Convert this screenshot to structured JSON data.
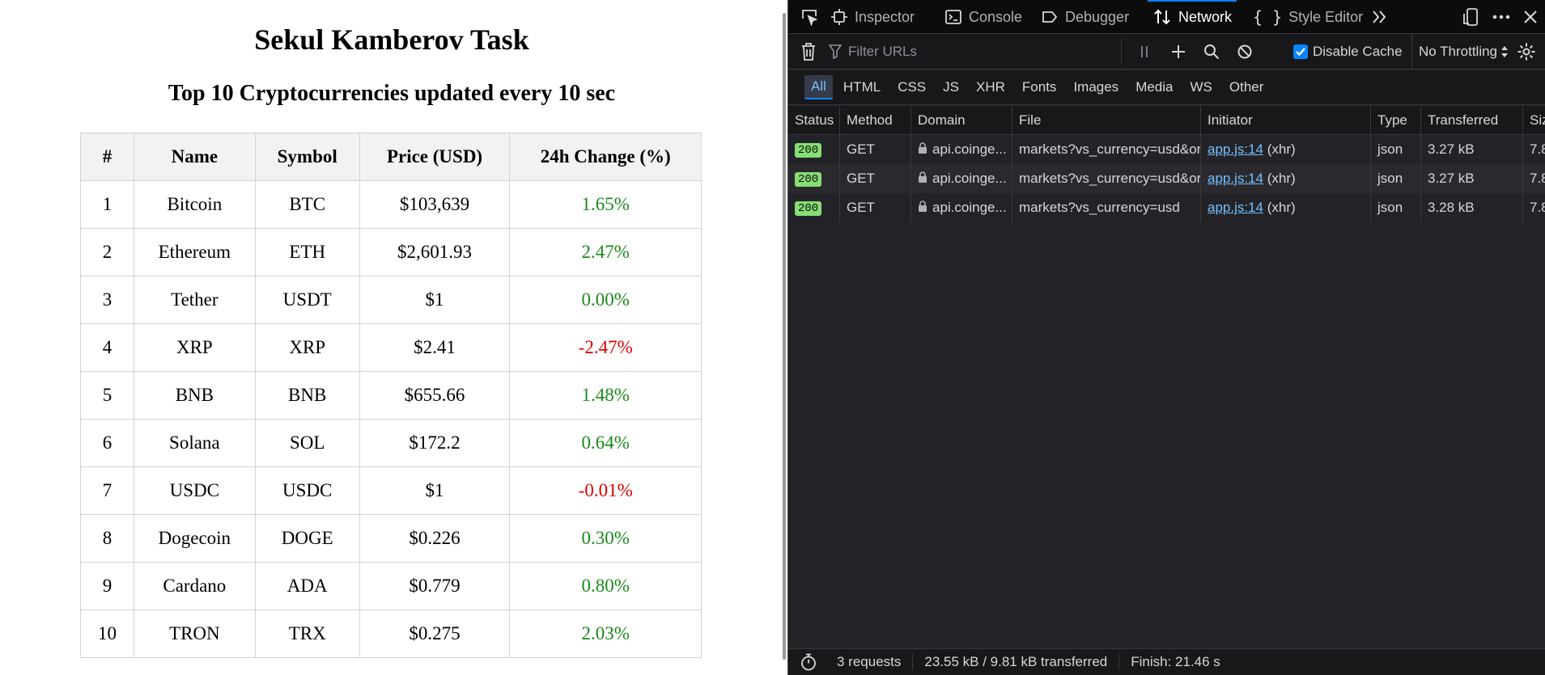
{
  "page": {
    "title": "Sekul Kamberov Task",
    "subtitle": "Top 10 Cryptocurrencies updated every 10 sec",
    "table": {
      "headers": [
        "#",
        "Name",
        "Symbol",
        "Price (USD)",
        "24h Change (%)"
      ],
      "rows": [
        {
          "rank": "1",
          "name": "Bitcoin",
          "symbol": "BTC",
          "price": "$103,639",
          "change": "1.65%",
          "trend": "pos"
        },
        {
          "rank": "2",
          "name": "Ethereum",
          "symbol": "ETH",
          "price": "$2,601.93",
          "change": "2.47%",
          "trend": "pos"
        },
        {
          "rank": "3",
          "name": "Tether",
          "symbol": "USDT",
          "price": "$1",
          "change": "0.00%",
          "trend": "pos"
        },
        {
          "rank": "4",
          "name": "XRP",
          "symbol": "XRP",
          "price": "$2.41",
          "change": "-2.47%",
          "trend": "neg"
        },
        {
          "rank": "5",
          "name": "BNB",
          "symbol": "BNB",
          "price": "$655.66",
          "change": "1.48%",
          "trend": "pos"
        },
        {
          "rank": "6",
          "name": "Solana",
          "symbol": "SOL",
          "price": "$172.2",
          "change": "0.64%",
          "trend": "pos"
        },
        {
          "rank": "7",
          "name": "USDC",
          "symbol": "USDC",
          "price": "$1",
          "change": "-0.01%",
          "trend": "neg"
        },
        {
          "rank": "8",
          "name": "Dogecoin",
          "symbol": "DOGE",
          "price": "$0.226",
          "change": "0.30%",
          "trend": "pos"
        },
        {
          "rank": "9",
          "name": "Cardano",
          "symbol": "ADA",
          "price": "$0.779",
          "change": "0.80%",
          "trend": "pos"
        },
        {
          "rank": "10",
          "name": "TRON",
          "symbol": "TRX",
          "price": "$0.275",
          "change": "2.03%",
          "trend": "pos"
        }
      ]
    },
    "colors": {
      "positive": "#1a8a1a",
      "negative": "#e00000"
    }
  },
  "devtools": {
    "tabs": {
      "inspector": "Inspector",
      "console": "Console",
      "debugger": "Debugger",
      "network": "Network",
      "style_editor": "Style Editor"
    },
    "selected_tab": "Network",
    "toolbar": {
      "filter_placeholder": "Filter URLs",
      "disable_cache_label": "Disable Cache",
      "disable_cache_checked": true,
      "throttling": "No Throttling"
    },
    "type_filters": [
      "All",
      "HTML",
      "CSS",
      "JS",
      "XHR",
      "Fonts",
      "Images",
      "Media",
      "WS",
      "Other"
    ],
    "selected_type_filter": "All",
    "columns": {
      "status": "Status",
      "method": "Method",
      "domain": "Domain",
      "file": "File",
      "initiator": "Initiator",
      "type": "Type",
      "transferred": "Transferred",
      "size": "Siz"
    },
    "requests": [
      {
        "status": "200",
        "method": "GET",
        "domain": "api.coinge...",
        "file": "markets?vs_currency=usd&ord",
        "initiator": "app.js:14",
        "initiator_cause": "(xhr)",
        "type": "json",
        "transferred": "3.27 kB",
        "size": "7.8"
      },
      {
        "status": "200",
        "method": "GET",
        "domain": "api.coinge...",
        "file": "markets?vs_currency=usd&ord",
        "initiator": "app.js:14",
        "initiator_cause": "(xhr)",
        "type": "json",
        "transferred": "3.27 kB",
        "size": "7.8"
      },
      {
        "status": "200",
        "method": "GET",
        "domain": "api.coinge...",
        "file": "markets?vs_currency=usd",
        "initiator": "app.js:14",
        "initiator_cause": "(xhr)",
        "type": "json",
        "transferred": "3.28 kB",
        "size": "7.8"
      }
    ],
    "footer": {
      "requests": "3 requests",
      "transferred": "23.55 kB / 9.81 kB transferred",
      "finish": "Finish: 21.46 s"
    },
    "colors": {
      "accent": "#0a84ff",
      "status_ok": "#86de74",
      "link": "#75bfff"
    }
  }
}
